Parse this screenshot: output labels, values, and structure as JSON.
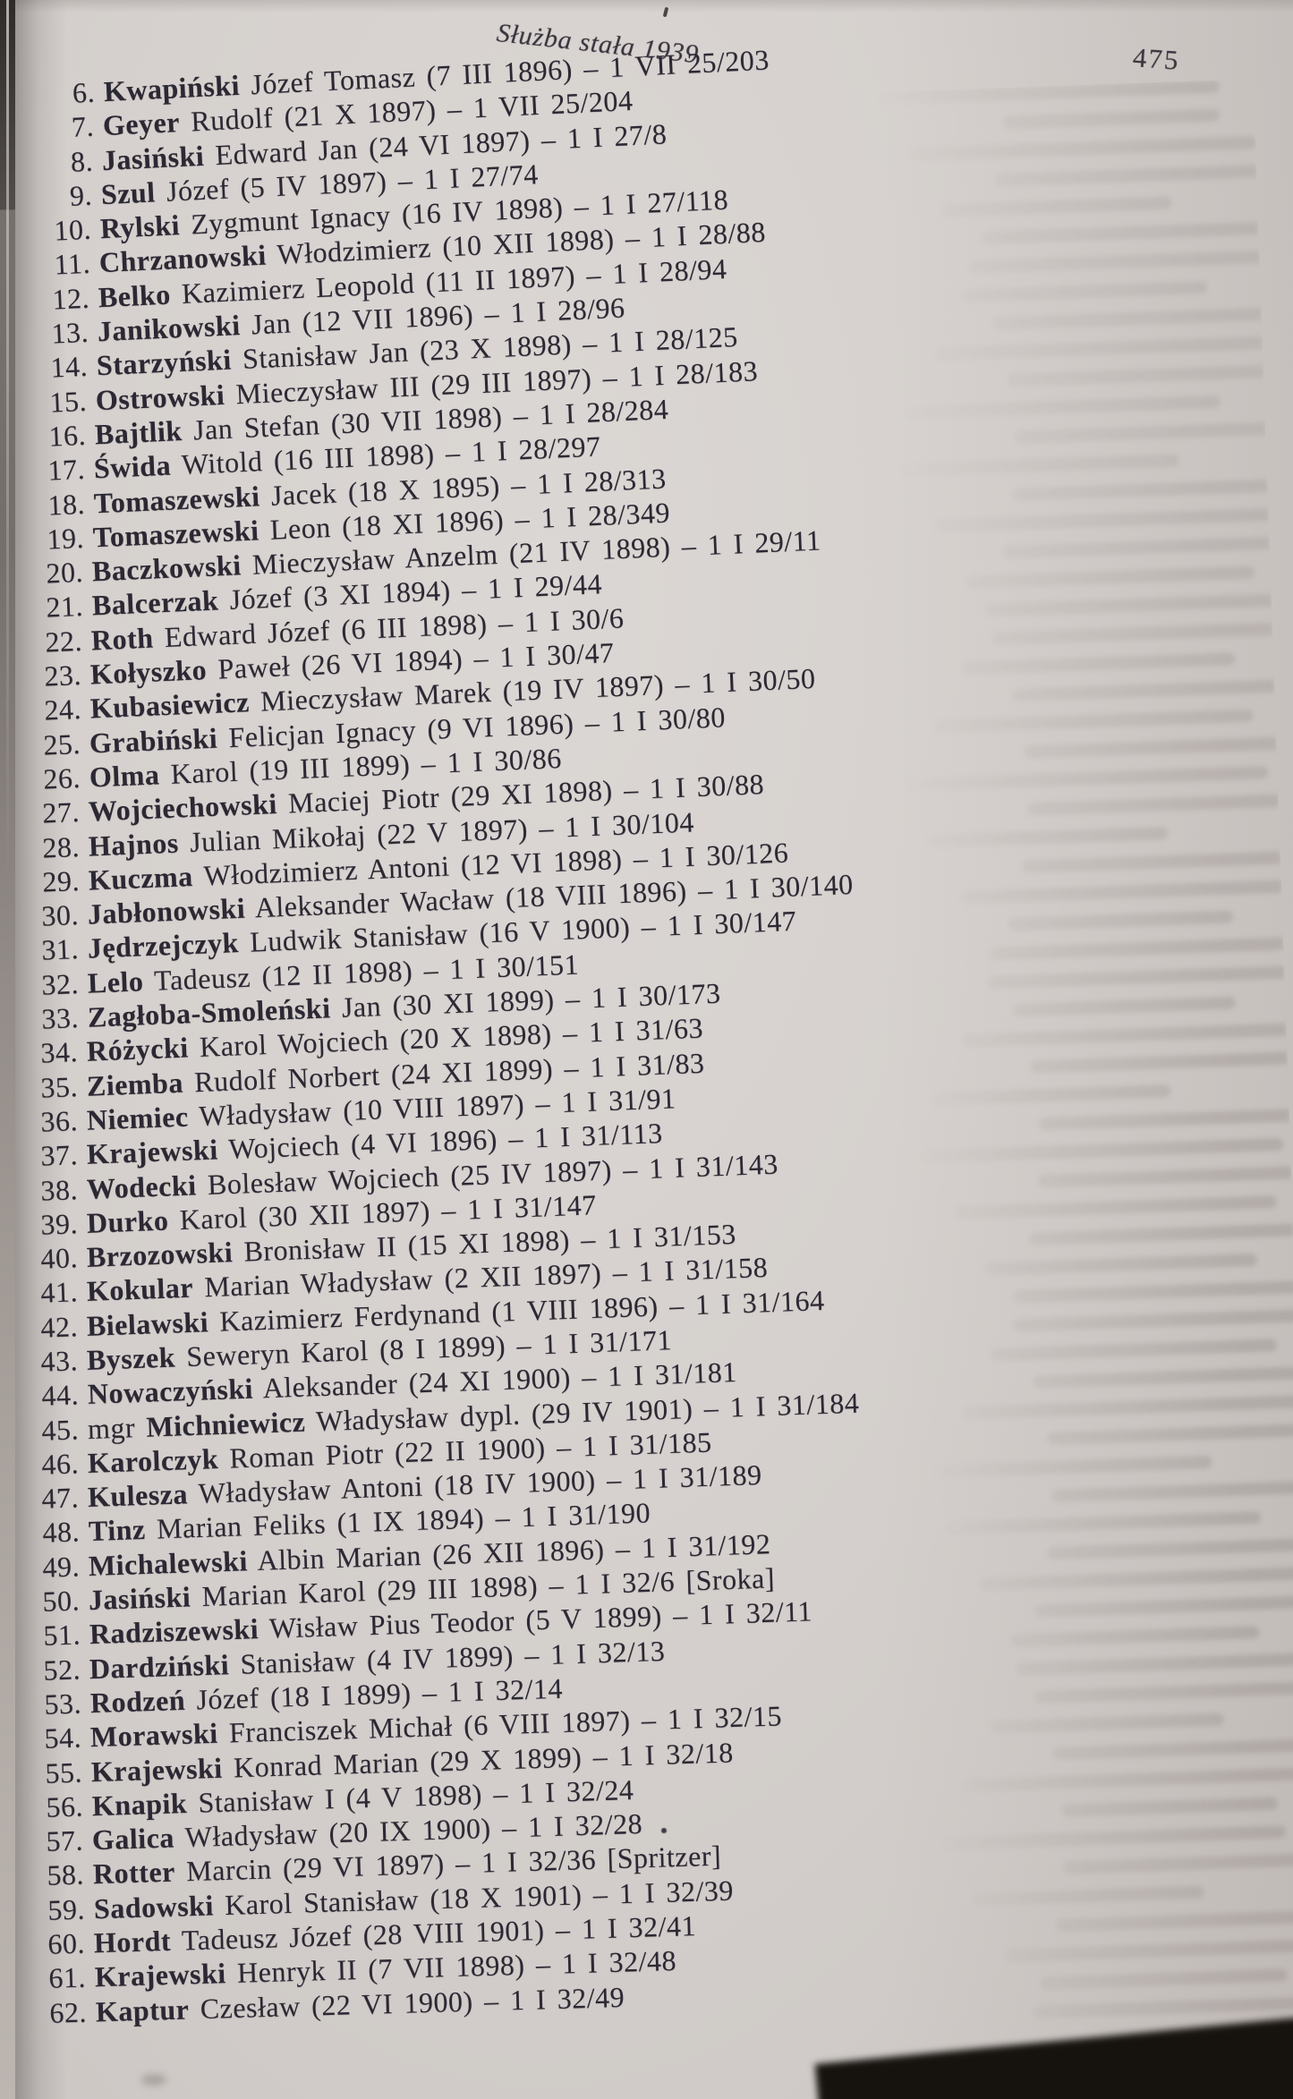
{
  "page": {
    "header_title": "Służba stała 1939",
    "page_number": "475"
  },
  "list": {
    "items": [
      {
        "n": "6.",
        "pre": "",
        "surname": "Kwapiński",
        "rest": " Józef Tomasz (7 III 1896) – 1 VII 25/203"
      },
      {
        "n": "7.",
        "pre": "",
        "surname": "Geyer",
        "rest": " Rudolf (21 X 1897) – 1 VII 25/204"
      },
      {
        "n": "8.",
        "pre": "",
        "surname": "Jasiński",
        "rest": " Edward Jan (24 VI 1897) – 1 I 27/8"
      },
      {
        "n": "9.",
        "pre": "",
        "surname": "Szul",
        "rest": " Józef (5 IV 1897) – 1 I 27/74"
      },
      {
        "n": "10.",
        "pre": "",
        "surname": "Rylski",
        "rest": " Zygmunt Ignacy (16 IV 1898) – 1 I 27/118"
      },
      {
        "n": "11.",
        "pre": "",
        "surname": "Chrzanowski",
        "rest": " Włodzimierz (10 XII 1898) – 1 I 28/88"
      },
      {
        "n": "12.",
        "pre": "",
        "surname": "Belko",
        "rest": " Kazimierz Leopold (11 II 1897) – 1 I 28/94"
      },
      {
        "n": "13.",
        "pre": "",
        "surname": "Janikowski",
        "rest": " Jan (12 VII 1896) – 1 I 28/96"
      },
      {
        "n": "14.",
        "pre": "",
        "surname": "Starzyński",
        "rest": " Stanisław Jan (23 X 1898) – 1 I 28/125"
      },
      {
        "n": "15.",
        "pre": "",
        "surname": "Ostrowski",
        "rest": " Mieczysław III (29 III 1897) – 1 I 28/183"
      },
      {
        "n": "16.",
        "pre": "",
        "surname": "Bajtlik",
        "rest": " Jan Stefan (30 VII 1898) – 1 I 28/284"
      },
      {
        "n": "17.",
        "pre": "",
        "surname": "Świda",
        "rest": " Witold (16 III 1898) – 1 I 28/297"
      },
      {
        "n": "18.",
        "pre": "",
        "surname": "Tomaszewski",
        "rest": " Jacek (18 X 1895) – 1 I 28/313"
      },
      {
        "n": "19.",
        "pre": "",
        "surname": "Tomaszewski",
        "rest": " Leon (18 XI 1896) – 1 I 28/349"
      },
      {
        "n": "20.",
        "pre": "",
        "surname": "Baczkowski",
        "rest": " Mieczysław Anzelm (21 IV 1898) – 1 I 29/11"
      },
      {
        "n": "21.",
        "pre": "",
        "surname": "Balcerzak",
        "rest": " Józef (3 XI 1894) – 1 I 29/44"
      },
      {
        "n": "22.",
        "pre": "",
        "surname": "Roth",
        "rest": " Edward Józef (6 III 1898) – 1 I 30/6"
      },
      {
        "n": "23.",
        "pre": "",
        "surname": "Kołyszko",
        "rest": " Paweł (26 VI 1894) – 1 I 30/47"
      },
      {
        "n": "24.",
        "pre": "",
        "surname": "Kubasiewicz",
        "rest": " Mieczysław Marek (19 IV 1897) – 1 I 30/50"
      },
      {
        "n": "25.",
        "pre": "",
        "surname": "Grabiński",
        "rest": " Felicjan Ignacy (9 VI 1896) – 1 I 30/80"
      },
      {
        "n": "26.",
        "pre": "",
        "surname": "Olma",
        "rest": " Karol (19 III 1899) – 1 I 30/86"
      },
      {
        "n": "27.",
        "pre": "",
        "surname": "Wojciechowski",
        "rest": " Maciej Piotr (29 XI 1898) – 1 I 30/88"
      },
      {
        "n": "28.",
        "pre": "",
        "surname": "Hajnos",
        "rest": " Julian Mikołaj (22 V 1897) – 1 I 30/104"
      },
      {
        "n": "29.",
        "pre": "",
        "surname": "Kuczma",
        "rest": " Włodzimierz Antoni (12 VI 1898) – 1 I 30/126"
      },
      {
        "n": "30.",
        "pre": "",
        "surname": "Jabłonowski",
        "rest": " Aleksander Wacław (18 VIII 1896) – 1 I 30/140"
      },
      {
        "n": "31.",
        "pre": "",
        "surname": "Jędrzejczyk",
        "rest": " Ludwik Stanisław (16 V 1900) – 1 I 30/147"
      },
      {
        "n": "32.",
        "pre": "",
        "surname": "Lelo",
        "rest": " Tadeusz (12 II 1898) – 1 I 30/151"
      },
      {
        "n": "33.",
        "pre": "",
        "surname": "Zagłoba-Smoleński",
        "rest": " Jan (30 XI 1899) – 1 I 30/173"
      },
      {
        "n": "34.",
        "pre": "",
        "surname": "Różycki",
        "rest": " Karol Wojciech (20 X 1898) – 1 I 31/63"
      },
      {
        "n": "35.",
        "pre": "",
        "surname": "Ziemba",
        "rest": " Rudolf Norbert (24 XI 1899) – 1 I 31/83"
      },
      {
        "n": "36.",
        "pre": "",
        "surname": "Niemiec",
        "rest": " Władysław (10 VIII 1897) – 1 I 31/91"
      },
      {
        "n": "37.",
        "pre": "",
        "surname": "Krajewski",
        "rest": " Wojciech (4 VI 1896) – 1 I 31/113"
      },
      {
        "n": "38.",
        "pre": "",
        "surname": "Wodecki",
        "rest": " Bolesław Wojciech (25 IV 1897) – 1 I 31/143"
      },
      {
        "n": "39.",
        "pre": "",
        "surname": "Durko",
        "rest": " Karol (30 XII 1897) – 1 I 31/147"
      },
      {
        "n": "40.",
        "pre": "",
        "surname": "Brzozowski",
        "rest": " Bronisław II (15 XI 1898) – 1 I 31/153"
      },
      {
        "n": "41.",
        "pre": "",
        "surname": "Kokular",
        "rest": " Marian Władysław (2 XII 1897) – 1 I 31/158"
      },
      {
        "n": "42.",
        "pre": "",
        "surname": "Bielawski",
        "rest": " Kazimierz Ferdynand (1 VIII 1896) – 1 I 31/164"
      },
      {
        "n": "43.",
        "pre": "",
        "surname": "Byszek",
        "rest": " Seweryn Karol (8 I 1899) – 1 I 31/171"
      },
      {
        "n": "44.",
        "pre": "",
        "surname": "Nowaczyński",
        "rest": " Aleksander (24 XI 1900) – 1 I 31/181"
      },
      {
        "n": "45.",
        "pre": "mgr ",
        "surname": "Michniewicz",
        "rest": " Władysław dypl. (29 IV 1901) – 1 I 31/184"
      },
      {
        "n": "46.",
        "pre": "",
        "surname": "Karolczyk",
        "rest": " Roman Piotr (22 II 1900) – 1 I 31/185"
      },
      {
        "n": "47.",
        "pre": "",
        "surname": "Kulesza",
        "rest": " Władysław Antoni (18 IV 1900) – 1 I 31/189"
      },
      {
        "n": "48.",
        "pre": "",
        "surname": "Tinz",
        "rest": " Marian Feliks (1 IX 1894) – 1 I 31/190"
      },
      {
        "n": "49.",
        "pre": "",
        "surname": "Michalewski",
        "rest": " Albin Marian (26 XII 1896) – 1 I 31/192"
      },
      {
        "n": "50.",
        "pre": "",
        "surname": "Jasiński",
        "rest": " Marian Karol (29 III 1898) – 1 I 32/6 [Sroka]"
      },
      {
        "n": "51.",
        "pre": "",
        "surname": "Radziszewski",
        "rest": " Wisław Pius Teodor (5 V 1899) – 1 I 32/11"
      },
      {
        "n": "52.",
        "pre": "",
        "surname": "Dardziński",
        "rest": " Stanisław (4 IV 1899) – 1 I 32/13"
      },
      {
        "n": "53.",
        "pre": "",
        "surname": "Rodzeń",
        "rest": " Józef (18 I 1899) – 1 I 32/14"
      },
      {
        "n": "54.",
        "pre": "",
        "surname": "Morawski",
        "rest": " Franciszek Michał (6 VIII 1897) – 1 I 32/15"
      },
      {
        "n": "55.",
        "pre": "",
        "surname": "Krajewski",
        "rest": " Konrad Marian (29 X 1899) – 1 I 32/18"
      },
      {
        "n": "56.",
        "pre": "",
        "surname": "Knapik",
        "rest": " Stanisław I (4 V 1898) – 1 I 32/24"
      },
      {
        "n": "57.",
        "pre": "",
        "surname": "Galica",
        "rest": " Władysław (20 IX 1900) – 1 I 32/28"
      },
      {
        "n": "58.",
        "pre": "",
        "surname": "Rotter",
        "rest": " Marcin (29 VI 1897) – 1 I 32/36 [Spritzer]"
      },
      {
        "n": "59.",
        "pre": "",
        "surname": "Sadowski",
        "rest": " Karol Stanisław (18 X 1901) – 1 I 32/39"
      },
      {
        "n": "60.",
        "pre": "",
        "surname": "Hordt",
        "rest": " Tadeusz Józef (28 VIII 1901) – 1 I 32/41"
      },
      {
        "n": "61.",
        "pre": "",
        "surname": "Krajewski",
        "rest": " Henryk II (7 VII 1898) – 1 I 32/48"
      },
      {
        "n": "62.",
        "pre": "",
        "surname": "Kaptur",
        "rest": " Czesław (22 VI 1900) – 1 I 32/49"
      }
    ]
  }
}
